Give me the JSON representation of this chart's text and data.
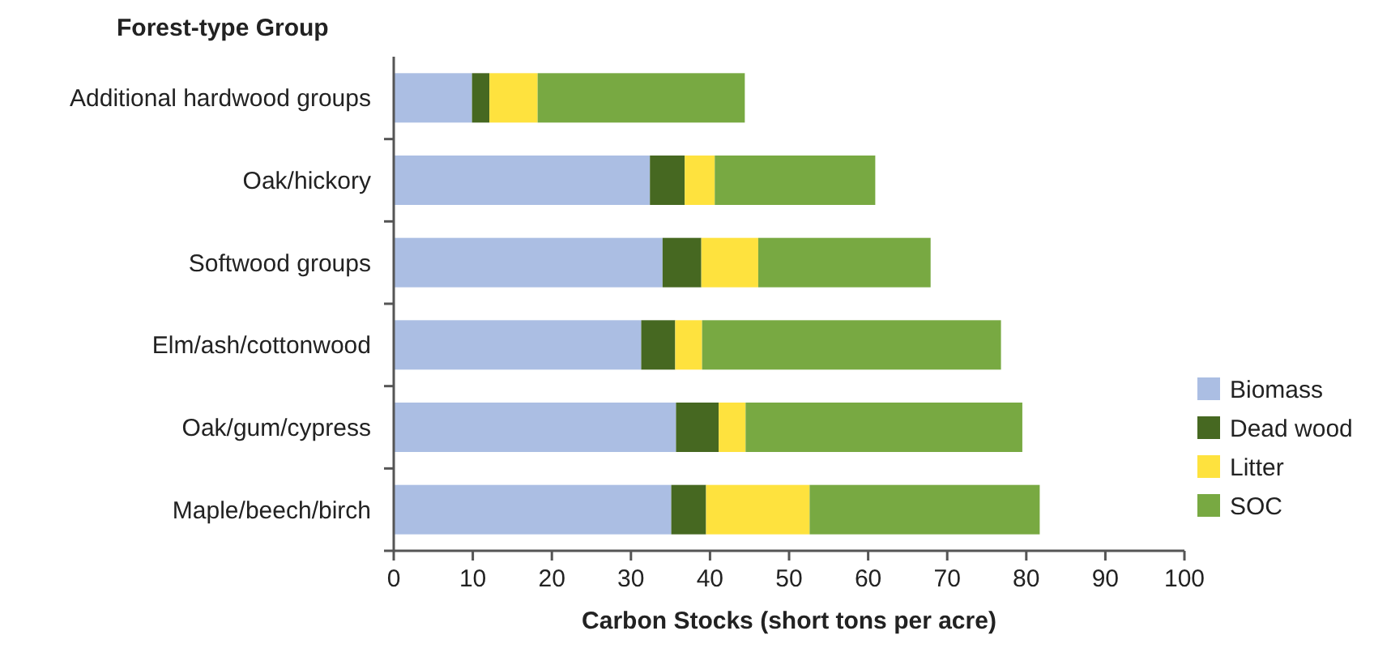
{
  "chart_data": {
    "type": "bar",
    "orientation": "horizontal",
    "stacked": true,
    "ylabel": "Forest-type Group",
    "xlabel": "Carbon Stocks (short tons per acre)",
    "categories": [
      "Additional hardwood groups",
      "Oak/hickory",
      "Softwood groups",
      "Elm/ash/cottonwood",
      "Oak/gum/cypress",
      "Maple/beech/birch"
    ],
    "series": [
      {
        "name": "Biomass",
        "color": "#abbee3",
        "values": [
          9.9,
          32.4,
          34.0,
          31.3,
          35.7,
          35.1
        ]
      },
      {
        "name": "Dead wood",
        "color": "#466821",
        "values": [
          2.2,
          4.4,
          4.9,
          4.3,
          5.4,
          4.4
        ]
      },
      {
        "name": "Litter",
        "color": "#fee23e",
        "values": [
          6.1,
          3.8,
          7.2,
          3.4,
          3.4,
          13.1
        ]
      },
      {
        "name": "SOC",
        "color": "#78a942",
        "values": [
          26.2,
          20.3,
          21.8,
          37.8,
          35.0,
          29.1
        ]
      }
    ],
    "xlim": [
      0,
      100
    ],
    "xticks": [
      0,
      10,
      20,
      30,
      40,
      50,
      60,
      70,
      80,
      90,
      100
    ],
    "grid": false,
    "legend": "bottom right"
  }
}
